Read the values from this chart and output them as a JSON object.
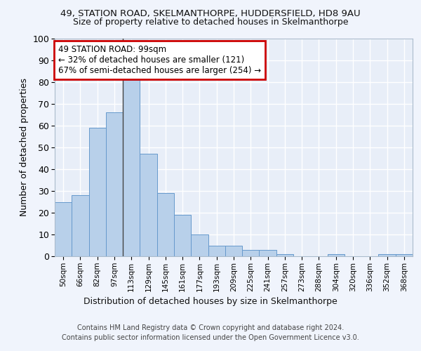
{
  "title1": "49, STATION ROAD, SKELMANTHORPE, HUDDERSFIELD, HD8 9AU",
  "title2": "Size of property relative to detached houses in Skelmanthorpe",
  "xlabel": "Distribution of detached houses by size in Skelmanthorpe",
  "ylabel": "Number of detached properties",
  "categories": [
    "50sqm",
    "66sqm",
    "82sqm",
    "97sqm",
    "113sqm",
    "129sqm",
    "145sqm",
    "161sqm",
    "177sqm",
    "193sqm",
    "209sqm",
    "225sqm",
    "241sqm",
    "257sqm",
    "273sqm",
    "288sqm",
    "304sqm",
    "320sqm",
    "336sqm",
    "352sqm",
    "368sqm"
  ],
  "values": [
    25,
    28,
    59,
    66,
    81,
    47,
    29,
    19,
    10,
    5,
    5,
    3,
    3,
    1,
    0,
    0,
    1,
    0,
    0,
    1,
    1
  ],
  "bar_color": "#b8d0ea",
  "bar_edge_color": "#6699cc",
  "annotation_text": "49 STATION ROAD: 99sqm\n← 32% of detached houses are smaller (121)\n67% of semi-detached houses are larger (254) →",
  "ylim": [
    0,
    100
  ],
  "bg_color": "#e8eef8",
  "grid_color": "#ffffff",
  "footer": "Contains HM Land Registry data © Crown copyright and database right 2024.\nContains public sector information licensed under the Open Government Licence v3.0.",
  "annotation_box_color": "#ffffff",
  "annotation_box_edge": "#cc0000",
  "fig_bg": "#f0f4fc"
}
